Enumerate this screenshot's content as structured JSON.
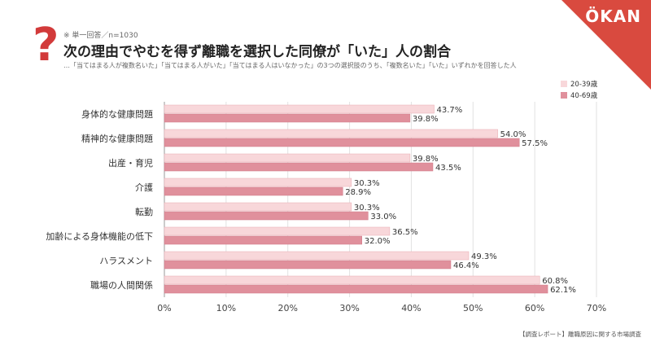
{
  "brand": {
    "logo_text": "ÖKAN",
    "corner_color": "#d94a3f"
  },
  "header": {
    "icon": "question-mark-icon",
    "note": "※ 単一回答／n=1030",
    "title": "次の理由でやむを得ず離職を選択した同僚が「いた」人の割合",
    "subtitle": "…「当てはまる人が複数名いた」「当てはまる人がいた」「当てはまる人はいなかった」の3つの選択肢のうち、「複数名いた」「いた」いずれかを回答した人"
  },
  "footer": {
    "text": "【調査レポート】離職原因に関する市場調査"
  },
  "chart_data": {
    "type": "bar",
    "orientation": "horizontal",
    "categories": [
      "身体的な健康問題",
      "精神的な健康問題",
      "出産・育児",
      "介護",
      "転勤",
      "加齢による身体機能の低下",
      "ハラスメント",
      "職場の人間関係"
    ],
    "series": [
      {
        "name": "20-39歳",
        "values": [
          43.7,
          54.0,
          39.8,
          30.3,
          30.3,
          36.5,
          49.3,
          60.8
        ],
        "labels": [
          "43.7%",
          "54.0%",
          "39.8%",
          "30.3%",
          "30.3%",
          "36.5%",
          "49.3%",
          "60.8%"
        ],
        "color": "#f8d7da",
        "stroke": "#e8aab0"
      },
      {
        "name": "40-69歳",
        "values": [
          39.8,
          57.5,
          43.5,
          28.9,
          33.0,
          32.0,
          46.4,
          62.1
        ],
        "labels": [
          "39.8%",
          "57.5%",
          "43.5%",
          "28.9%",
          "33.0%",
          "32.0%",
          "46.4%",
          "62.1%"
        ],
        "color": "#e0909c",
        "stroke": "#d07a88"
      }
    ],
    "xlim": [
      0,
      70
    ],
    "xticks": [
      "0%",
      "10%",
      "20%",
      "30%",
      "40%",
      "50%",
      "60%",
      "70%"
    ],
    "grid": true,
    "legend_position": "top-right"
  }
}
